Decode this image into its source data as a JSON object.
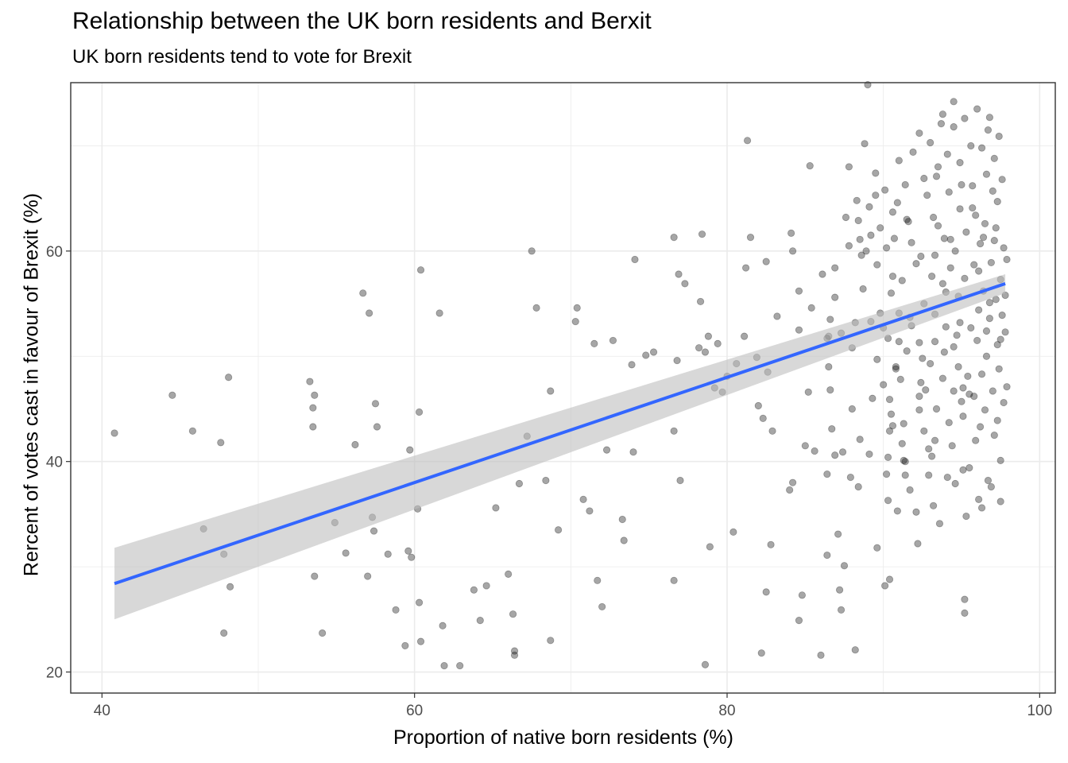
{
  "chart_data": {
    "type": "scatter",
    "title": "Relationship between the UK born residents and Berxit",
    "subtitle": "UK born residents tend to vote for Brexit",
    "xlabel": "Proportion of native born residents (%)",
    "ylabel": "Rercent of votes cast in favour of Brexit (%)",
    "xlim": [
      38,
      101
    ],
    "ylim": [
      18,
      76
    ],
    "x_ticks": [
      40,
      60,
      80,
      100
    ],
    "y_ticks": [
      20,
      40,
      60
    ],
    "grid": true,
    "legend": "none",
    "point_color": "#000000",
    "point_opacity": 0.35,
    "trend": {
      "method": "linear fit with confidence band",
      "color": "#3366FF",
      "band_color": "#BEBEBE",
      "start": {
        "x": 40.8,
        "y": 28.4,
        "lower": 25.0,
        "upper": 31.8
      },
      "end": {
        "x": 97.8,
        "y": 56.9,
        "lower": 56.0,
        "upper": 57.8
      }
    },
    "points": [
      [
        40.8,
        42.7
      ],
      [
        44.5,
        46.3
      ],
      [
        45.8,
        42.9
      ],
      [
        46.5,
        33.6
      ],
      [
        47.6,
        41.8
      ],
      [
        47.8,
        23.7
      ],
      [
        47.8,
        31.2
      ],
      [
        48.1,
        48.0
      ],
      [
        48.2,
        28.1
      ],
      [
        53.3,
        47.6
      ],
      [
        53.5,
        45.1
      ],
      [
        53.5,
        43.3
      ],
      [
        53.6,
        46.3
      ],
      [
        53.6,
        29.1
      ],
      [
        54.1,
        23.7
      ],
      [
        54.9,
        34.2
      ],
      [
        55.6,
        31.3
      ],
      [
        56.2,
        41.6
      ],
      [
        56.7,
        56.0
      ],
      [
        57.0,
        29.1
      ],
      [
        57.1,
        54.1
      ],
      [
        57.3,
        34.7
      ],
      [
        57.4,
        33.4
      ],
      [
        57.5,
        45.5
      ],
      [
        57.6,
        43.3
      ],
      [
        58.3,
        31.2
      ],
      [
        58.8,
        25.9
      ],
      [
        59.4,
        22.5
      ],
      [
        59.6,
        31.5
      ],
      [
        59.7,
        41.1
      ],
      [
        59.8,
        30.9
      ],
      [
        60.2,
        35.5
      ],
      [
        60.3,
        26.6
      ],
      [
        60.3,
        44.7
      ],
      [
        60.4,
        58.2
      ],
      [
        60.4,
        22.9
      ],
      [
        61.6,
        54.1
      ],
      [
        61.8,
        24.4
      ],
      [
        61.9,
        20.6
      ],
      [
        62.9,
        20.6
      ],
      [
        63.8,
        27.8
      ],
      [
        64.2,
        24.9
      ],
      [
        64.6,
        28.2
      ],
      [
        65.2,
        35.6
      ],
      [
        66.0,
        29.3
      ],
      [
        66.3,
        25.5
      ],
      [
        66.4,
        22.0
      ],
      [
        66.4,
        21.6
      ],
      [
        66.7,
        37.9
      ],
      [
        67.2,
        42.4
      ],
      [
        67.5,
        60.0
      ],
      [
        67.8,
        54.6
      ],
      [
        68.4,
        38.2
      ],
      [
        68.7,
        23.0
      ],
      [
        68.7,
        46.7
      ],
      [
        69.2,
        33.5
      ],
      [
        70.3,
        53.3
      ],
      [
        70.4,
        54.6
      ],
      [
        70.8,
        36.4
      ],
      [
        71.2,
        35.3
      ],
      [
        71.5,
        51.2
      ],
      [
        71.7,
        28.7
      ],
      [
        72.0,
        26.2
      ],
      [
        72.3,
        41.1
      ],
      [
        72.7,
        51.5
      ],
      [
        73.3,
        34.5
      ],
      [
        73.4,
        32.5
      ],
      [
        73.9,
        49.2
      ],
      [
        74.0,
        40.9
      ],
      [
        74.1,
        59.2
      ],
      [
        74.8,
        50.1
      ],
      [
        75.3,
        50.4
      ],
      [
        76.6,
        28.7
      ],
      [
        76.6,
        42.9
      ],
      [
        76.6,
        61.3
      ],
      [
        76.8,
        49.6
      ],
      [
        76.9,
        57.8
      ],
      [
        77.0,
        38.2
      ],
      [
        77.3,
        56.9
      ],
      [
        78.2,
        50.8
      ],
      [
        78.3,
        55.2
      ],
      [
        78.4,
        61.6
      ],
      [
        78.6,
        20.7
      ],
      [
        78.6,
        50.4
      ],
      [
        78.8,
        51.9
      ],
      [
        78.9,
        31.9
      ],
      [
        79.2,
        47.0
      ],
      [
        79.4,
        51.2
      ],
      [
        79.7,
        46.6
      ],
      [
        80.0,
        48.1
      ],
      [
        80.4,
        33.3
      ],
      [
        80.6,
        49.3
      ],
      [
        81.1,
        51.9
      ],
      [
        81.2,
        58.4
      ],
      [
        81.3,
        70.5
      ],
      [
        81.5,
        61.3
      ],
      [
        81.9,
        49.9
      ],
      [
        82.0,
        45.3
      ],
      [
        82.2,
        21.8
      ],
      [
        82.3,
        44.1
      ],
      [
        82.5,
        27.6
      ],
      [
        82.5,
        59.0
      ],
      [
        82.6,
        48.5
      ],
      [
        82.8,
        32.1
      ],
      [
        82.9,
        42.9
      ],
      [
        83.2,
        53.8
      ],
      [
        84.0,
        37.3
      ],
      [
        84.1,
        61.7
      ],
      [
        84.2,
        38.0
      ],
      [
        84.2,
        60.0
      ],
      [
        84.6,
        24.9
      ],
      [
        84.6,
        56.2
      ],
      [
        84.6,
        52.5
      ],
      [
        84.8,
        27.3
      ],
      [
        85.0,
        41.5
      ],
      [
        85.2,
        46.6
      ],
      [
        85.3,
        68.1
      ],
      [
        85.4,
        54.6
      ],
      [
        85.6,
        41.0
      ],
      [
        86.0,
        21.6
      ],
      [
        86.1,
        57.8
      ],
      [
        86.4,
        51.7
      ],
      [
        86.4,
        31.1
      ],
      [
        86.5,
        51.9
      ],
      [
        86.6,
        53.5
      ],
      [
        86.9,
        55.6
      ],
      [
        86.9,
        58.4
      ],
      [
        87.1,
        33.1
      ],
      [
        87.2,
        27.8
      ],
      [
        87.3,
        52.2
      ],
      [
        87.3,
        25.9
      ],
      [
        87.5,
        30.1
      ],
      [
        87.6,
        63.2
      ],
      [
        87.8,
        60.5
      ],
      [
        87.8,
        68.0
      ],
      [
        88.0,
        45.0
      ],
      [
        88.0,
        50.8
      ],
      [
        88.2,
        22.1
      ],
      [
        88.2,
        53.2
      ],
      [
        88.4,
        62.9
      ],
      [
        88.4,
        37.6
      ],
      [
        88.5,
        61.1
      ],
      [
        88.6,
        59.6
      ],
      [
        88.8,
        70.2
      ],
      [
        88.9,
        60.0
      ],
      [
        89.2,
        61.5
      ],
      [
        89.5,
        65.3
      ],
      [
        89.6,
        58.7
      ],
      [
        89.8,
        54.1
      ],
      [
        90.0,
        47.3
      ],
      [
        90.0,
        52.7
      ],
      [
        89.6,
        31.8
      ],
      [
        90.3,
        51.7
      ],
      [
        90.2,
        60.3
      ],
      [
        90.2,
        38.8
      ],
      [
        90.3,
        40.4
      ],
      [
        90.4,
        42.9
      ],
      [
        90.5,
        44.5
      ],
      [
        90.5,
        56.0
      ],
      [
        90.6,
        57.6
      ],
      [
        90.8,
        48.8
      ],
      [
        90.9,
        35.3
      ],
      [
        91.0,
        54.1
      ],
      [
        91.1,
        47.8
      ],
      [
        91.3,
        43.6
      ],
      [
        91.2,
        41.7
      ],
      [
        90.8,
        49.0
      ],
      [
        91.4,
        40.0
      ],
      [
        91.5,
        50.5
      ],
      [
        91.6,
        62.8
      ],
      [
        91.8,
        60.8
      ],
      [
        91.8,
        52.9
      ],
      [
        92.1,
        35.2
      ],
      [
        92.3,
        51.3
      ],
      [
        92.3,
        46.2
      ],
      [
        92.3,
        44.9
      ],
      [
        92.4,
        59.5
      ],
      [
        92.6,
        55.0
      ],
      [
        92.7,
        46.8
      ],
      [
        92.6,
        42.9
      ],
      [
        92.9,
        38.7
      ],
      [
        93.0,
        49.3
      ],
      [
        93.1,
        40.5
      ],
      [
        93.1,
        57.6
      ],
      [
        93.2,
        63.2
      ],
      [
        93.3,
        54.0
      ],
      [
        93.3,
        51.4
      ],
      [
        93.4,
        45.0
      ],
      [
        93.5,
        68.0
      ],
      [
        93.6,
        34.1
      ],
      [
        93.8,
        47.9
      ],
      [
        93.8,
        56.9
      ],
      [
        93.9,
        61.2
      ],
      [
        94.0,
        52.8
      ],
      [
        94.2,
        43.7
      ],
      [
        94.3,
        58.4
      ],
      [
        94.4,
        41.5
      ],
      [
        94.5,
        50.9
      ],
      [
        94.6,
        60.0
      ],
      [
        94.8,
        49.0
      ],
      [
        94.8,
        55.7
      ],
      [
        94.9,
        53.2
      ],
      [
        95.0,
        66.3
      ],
      [
        95.1,
        39.2
      ],
      [
        95.1,
        47.0
      ],
      [
        95.1,
        44.3
      ],
      [
        95.2,
        57.4
      ],
      [
        95.3,
        61.8
      ],
      [
        95.5,
        46.4
      ],
      [
        95.6,
        52.7
      ],
      [
        95.7,
        64.1
      ],
      [
        95.8,
        58.7
      ],
      [
        95.9,
        42.0
      ],
      [
        96.0,
        51.5
      ],
      [
        96.1,
        36.4
      ],
      [
        96.1,
        54.4
      ],
      [
        96.2,
        60.7
      ],
      [
        96.3,
        48.3
      ],
      [
        96.4,
        56.2
      ],
      [
        96.5,
        44.9
      ],
      [
        96.5,
        62.6
      ],
      [
        96.6,
        50.0
      ],
      [
        96.7,
        38.2
      ],
      [
        96.8,
        53.6
      ],
      [
        96.9,
        58.9
      ],
      [
        97.0,
        46.7
      ],
      [
        97.1,
        61.0
      ],
      [
        97.1,
        42.5
      ],
      [
        97.2,
        55.4
      ],
      [
        97.3,
        51.1
      ],
      [
        97.3,
        64.7
      ],
      [
        97.4,
        48.8
      ],
      [
        97.5,
        57.3
      ],
      [
        97.5,
        40.1
      ],
      [
        97.6,
        53.9
      ],
      [
        97.7,
        60.3
      ],
      [
        97.7,
        45.6
      ],
      [
        97.8,
        55.8
      ],
      [
        97.8,
        52.3
      ],
      [
        97.9,
        59.2
      ],
      [
        89.1,
        64.2
      ],
      [
        89.5,
        67.4
      ],
      [
        90.1,
        65.8
      ],
      [
        90.6,
        63.7
      ],
      [
        91.0,
        68.6
      ],
      [
        91.4,
        66.3
      ],
      [
        91.9,
        69.4
      ],
      [
        92.3,
        71.2
      ],
      [
        92.6,
        66.9
      ],
      [
        93.0,
        70.3
      ],
      [
        93.4,
        67.1
      ],
      [
        93.8,
        73.0
      ],
      [
        94.1,
        69.2
      ],
      [
        94.5,
        71.8
      ],
      [
        94.9,
        68.4
      ],
      [
        95.2,
        72.6
      ],
      [
        95.6,
        70.0
      ],
      [
        96.0,
        73.5
      ],
      [
        96.3,
        69.8
      ],
      [
        96.7,
        71.5
      ],
      [
        97.1,
        68.8
      ],
      [
        97.4,
        70.9
      ],
      [
        89.0,
        75.8
      ],
      [
        94.5,
        74.2
      ],
      [
        93.7,
        72.1
      ],
      [
        96.8,
        72.7
      ],
      [
        88.7,
        56.4
      ],
      [
        89.2,
        53.3
      ],
      [
        89.6,
        49.7
      ],
      [
        90.4,
        45.9
      ],
      [
        91.2,
        57.2
      ],
      [
        91.7,
        53.7
      ],
      [
        92.5,
        49.8
      ],
      [
        93.3,
        59.6
      ],
      [
        94.0,
        56.1
      ],
      [
        94.7,
        52.0
      ],
      [
        95.4,
        48.1
      ],
      [
        96.1,
        58.1
      ],
      [
        96.8,
        55.1
      ],
      [
        97.5,
        51.6
      ],
      [
        92.1,
        58.8
      ],
      [
        94.3,
        61.1
      ],
      [
        95.9,
        63.4
      ],
      [
        97.2,
        62.2
      ],
      [
        90.7,
        61.2
      ],
      [
        93.5,
        62.4
      ],
      [
        96.4,
        61.3
      ],
      [
        88.3,
        64.8
      ],
      [
        91.5,
        63.0
      ],
      [
        94.9,
        64.0
      ],
      [
        97.0,
        65.7
      ],
      [
        97.6,
        66.8
      ],
      [
        96.6,
        67.3
      ],
      [
        95.7,
        66.2
      ],
      [
        94.2,
        65.6
      ],
      [
        92.8,
        65.3
      ],
      [
        90.9,
        64.6
      ],
      [
        89.8,
        62.2
      ],
      [
        93.9,
        50.4
      ],
      [
        95.0,
        45.7
      ],
      [
        96.2,
        43.3
      ],
      [
        97.3,
        43.9
      ],
      [
        95.5,
        39.4
      ],
      [
        96.9,
        37.6
      ],
      [
        97.5,
        36.2
      ],
      [
        94.6,
        37.9
      ],
      [
        93.2,
        35.8
      ],
      [
        92.2,
        32.2
      ],
      [
        91.7,
        37.3
      ],
      [
        90.3,
        36.3
      ],
      [
        89.1,
        40.7
      ],
      [
        88.5,
        42.1
      ],
      [
        87.9,
        38.5
      ],
      [
        87.4,
        40.9
      ],
      [
        86.9,
        40.6
      ],
      [
        86.4,
        38.8
      ],
      [
        86.7,
        43.1
      ],
      [
        86.6,
        46.8
      ],
      [
        86.5,
        49.0
      ],
      [
        89.3,
        46.0
      ],
      [
        90.6,
        43.4
      ],
      [
        91.4,
        38.7
      ],
      [
        92.9,
        41.2
      ],
      [
        94.1,
        38.5
      ],
      [
        95.3,
        34.8
      ],
      [
        96.3,
        35.6
      ],
      [
        95.2,
        26.9
      ],
      [
        95.2,
        25.6
      ],
      [
        90.1,
        28.2
      ],
      [
        90.4,
        28.8
      ],
      [
        91.3,
        40.1
      ],
      [
        93.3,
        42.0
      ],
      [
        95.8,
        46.2
      ],
      [
        96.6,
        52.4
      ],
      [
        97.9,
        47.1
      ],
      [
        94.5,
        46.7
      ],
      [
        92.4,
        47.5
      ],
      [
        91.0,
        51.4
      ]
    ]
  }
}
